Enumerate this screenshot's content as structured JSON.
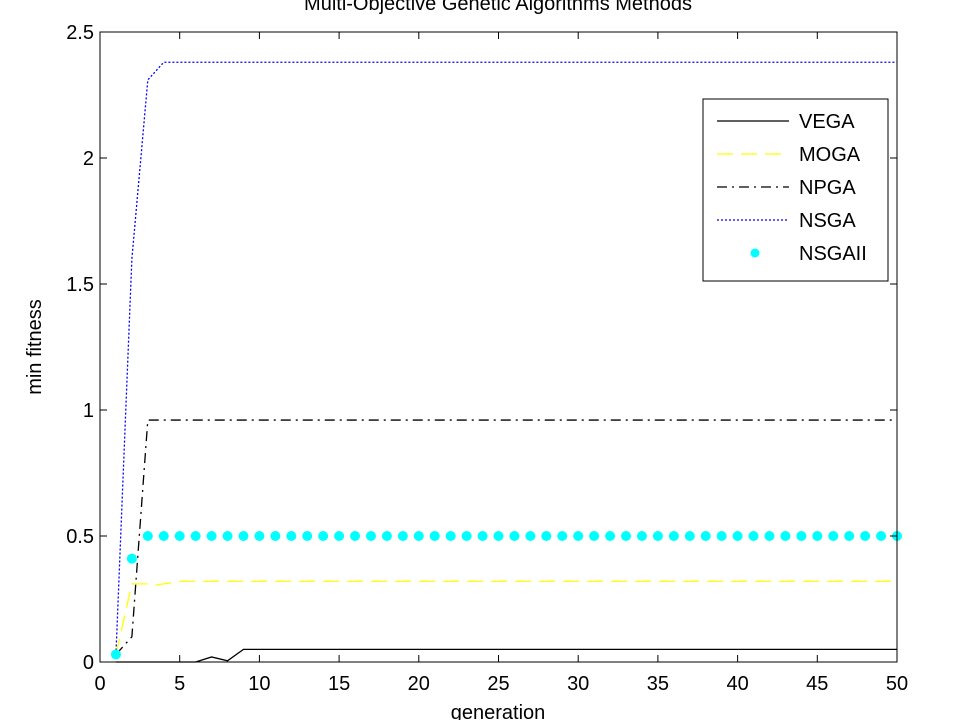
{
  "chart_data": {
    "type": "line",
    "title": "Multi-Objective Genetic Algorithms Methods",
    "xlabel": "generation",
    "ylabel": "min fitness",
    "xlim": [
      0,
      50
    ],
    "ylim": [
      0,
      2.5
    ],
    "xticks": [
      0,
      5,
      10,
      15,
      20,
      25,
      30,
      35,
      40,
      45,
      50
    ],
    "yticks": [
      0,
      0.5,
      1,
      1.5,
      2,
      2.5
    ],
    "xtick_labels": [
      "0",
      "5",
      "10",
      "15",
      "20",
      "25",
      "30",
      "35",
      "40",
      "45",
      "50"
    ],
    "ytick_labels": [
      "0",
      "0.5",
      "1",
      "1.5",
      "2",
      "2.5"
    ],
    "grid": false,
    "legend_position": "top-right",
    "series": [
      {
        "name": "VEGA",
        "color": "#000000",
        "style": "solid",
        "x": [
          1,
          2,
          3,
          4,
          5,
          6,
          7,
          8,
          9,
          10,
          50
        ],
        "y": [
          0.0,
          0.0,
          0.0,
          0.0,
          0.0,
          0.0,
          0.02,
          0.005,
          0.05,
          0.05,
          0.05
        ]
      },
      {
        "name": "MOGA",
        "color": "#ffff00",
        "style": "dashed",
        "x": [
          1,
          2,
          3,
          3.5,
          4,
          5,
          50
        ],
        "y": [
          0.03,
          0.31,
          0.31,
          0.305,
          0.31,
          0.32,
          0.32
        ]
      },
      {
        "name": "NPGA",
        "color": "#000000",
        "style": "dashdot",
        "x": [
          1,
          2,
          3,
          50
        ],
        "y": [
          0.03,
          0.1,
          0.96,
          0.96
        ]
      },
      {
        "name": "NSGA",
        "color": "#0000ff",
        "style": "dotted",
        "x": [
          1,
          2,
          3,
          4,
          50
        ],
        "y": [
          0.03,
          1.6,
          2.31,
          2.38,
          2.38
        ]
      },
      {
        "name": "NSGAII",
        "color": "#00ffff",
        "style": "markers",
        "x": [
          1,
          2,
          3,
          4,
          5,
          6,
          7,
          8,
          9,
          10,
          11,
          12,
          13,
          14,
          15,
          16,
          17,
          18,
          19,
          20,
          21,
          22,
          23,
          24,
          25,
          26,
          27,
          28,
          29,
          30,
          31,
          32,
          33,
          34,
          35,
          36,
          37,
          38,
          39,
          40,
          41,
          42,
          43,
          44,
          45,
          46,
          47,
          48,
          49,
          50
        ],
        "y": [
          0.03,
          0.41,
          0.5,
          0.5,
          0.5,
          0.5,
          0.5,
          0.5,
          0.5,
          0.5,
          0.5,
          0.5,
          0.5,
          0.5,
          0.5,
          0.5,
          0.5,
          0.5,
          0.5,
          0.5,
          0.5,
          0.5,
          0.5,
          0.5,
          0.5,
          0.5,
          0.5,
          0.5,
          0.5,
          0.5,
          0.5,
          0.5,
          0.5,
          0.5,
          0.5,
          0.5,
          0.5,
          0.5,
          0.5,
          0.5,
          0.5,
          0.5,
          0.5,
          0.5,
          0.5,
          0.5,
          0.5,
          0.5,
          0.5,
          0.5
        ]
      }
    ]
  }
}
